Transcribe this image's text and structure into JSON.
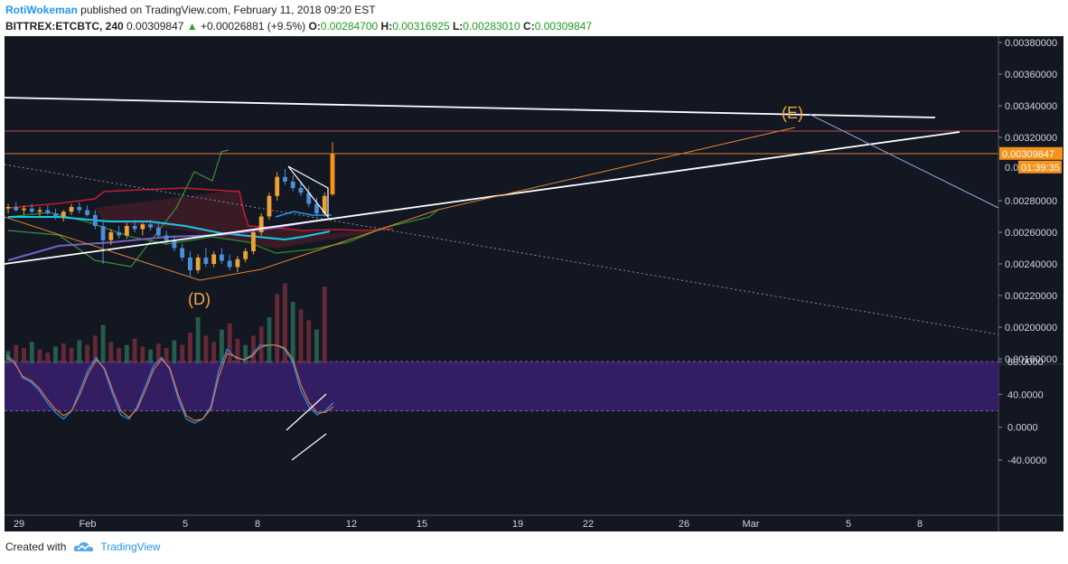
{
  "header": {
    "author": "RotiWokeman",
    "published_text": "published on TradingView.com, February 11, 2018 09:20 EST",
    "symbol": "BITTREX:ETCBTC, 240",
    "last": "0.00309847",
    "change_arrow": "▲",
    "change": "+0.00026881 (+9.5%)",
    "o_label": "O:",
    "o": "0.00284700",
    "h_label": "H:",
    "h": "0.00316925",
    "l_label": "L:",
    "l": "0.00283010",
    "c_label": "C:",
    "c": "0.00309847"
  },
  "footer": {
    "created_with": "Created with",
    "brand": "TradingView"
  },
  "chart_data": [
    {
      "type": "candlestick",
      "y_ticks": [
        "0.00380000",
        "0.00360000",
        "0.00340000",
        "0.00320000",
        "0.00280000",
        "0.00260000",
        "0.00240000",
        "0.00220000",
        "0.00200000",
        "0.00180000"
      ],
      "y_tick_values": [
        0.0038,
        0.0036,
        0.0034,
        0.0032,
        0.0028,
        0.0026,
        0.0024,
        0.0022,
        0.002,
        0.0018
      ],
      "ylim": [
        0.00175,
        0.00385
      ],
      "x_ticks": [
        "29",
        "Feb",
        "5",
        "8",
        "12",
        "15",
        "19",
        "22",
        "26",
        "Mar",
        "5",
        "8"
      ],
      "price_label": "0.00309847",
      "countdown_label": "01:39:35",
      "countdown_prefix": "0.0",
      "annotations": [
        "(D)",
        "(E)"
      ],
      "candles_approx": [
        [
          0.00275,
          0.00278,
          0.00272,
          0.00276
        ],
        [
          0.00276,
          0.00279,
          0.00273,
          0.00274
        ],
        [
          0.00274,
          0.00277,
          0.00271,
          0.00275
        ],
        [
          0.00275,
          0.00278,
          0.00272,
          0.00273
        ],
        [
          0.00273,
          0.00276,
          0.0027,
          0.00274
        ],
        [
          0.00274,
          0.00277,
          0.00271,
          0.00272
        ],
        [
          0.00272,
          0.00275,
          0.00268,
          0.0027
        ],
        [
          0.0027,
          0.00274,
          0.00267,
          0.00273
        ],
        [
          0.00273,
          0.00278,
          0.00271,
          0.00276
        ],
        [
          0.00276,
          0.00279,
          0.00272,
          0.00274
        ],
        [
          0.00274,
          0.00277,
          0.0027,
          0.00271
        ],
        [
          0.00271,
          0.00274,
          0.00262,
          0.00264
        ],
        [
          0.00264,
          0.00268,
          0.0024,
          0.00255
        ],
        [
          0.00255,
          0.00262,
          0.00252,
          0.0026
        ],
        [
          0.0026,
          0.00264,
          0.00256,
          0.00258
        ],
        [
          0.00258,
          0.00266,
          0.00256,
          0.00264
        ],
        [
          0.00264,
          0.00268,
          0.0026,
          0.00262
        ],
        [
          0.00262,
          0.00266,
          0.00258,
          0.00265
        ],
        [
          0.00265,
          0.00268,
          0.00261,
          0.00263
        ],
        [
          0.00263,
          0.00266,
          0.00256,
          0.00258
        ],
        [
          0.00258,
          0.00261,
          0.00252,
          0.00255
        ],
        [
          0.00255,
          0.00258,
          0.00248,
          0.0025
        ],
        [
          0.0025,
          0.00253,
          0.00242,
          0.00244
        ],
        [
          0.00244,
          0.00248,
          0.00232,
          0.00236
        ],
        [
          0.00236,
          0.00246,
          0.00234,
          0.00244
        ],
        [
          0.00244,
          0.0025,
          0.00238,
          0.0024
        ],
        [
          0.0024,
          0.00248,
          0.00238,
          0.00246
        ],
        [
          0.00246,
          0.0025,
          0.0024,
          0.00242
        ],
        [
          0.00242,
          0.00246,
          0.00236,
          0.00238
        ],
        [
          0.00238,
          0.00245,
          0.00235,
          0.00243
        ],
        [
          0.00243,
          0.0025,
          0.00241,
          0.00248
        ],
        [
          0.00248,
          0.00262,
          0.00246,
          0.0026
        ],
        [
          0.0026,
          0.00272,
          0.00258,
          0.0027
        ],
        [
          0.0027,
          0.00285,
          0.00268,
          0.00283
        ],
        [
          0.00283,
          0.00298,
          0.0028,
          0.00295
        ],
        [
          0.00295,
          0.003,
          0.0029,
          0.00292
        ],
        [
          0.00292,
          0.00296,
          0.00286,
          0.00288
        ],
        [
          0.00288,
          0.00292,
          0.00283,
          0.00285
        ],
        [
          0.00285,
          0.00289,
          0.00276,
          0.00278
        ],
        [
          0.00278,
          0.00282,
          0.0027,
          0.00272
        ],
        [
          0.00272,
          0.00285,
          0.0027,
          0.00283
        ],
        [
          0.00284,
          0.00317,
          0.00283,
          0.0031
        ]
      ]
    },
    {
      "type": "line",
      "name": "stochastic",
      "y_ticks": [
        "80.0000",
        "40.0000",
        "0.0000",
        "-40.0000"
      ],
      "y_tick_values": [
        80,
        40,
        0,
        -40
      ],
      "ylim": [
        -50,
        100
      ],
      "band": [
        20,
        80
      ],
      "series": [
        {
          "values": [
            88,
            80,
            60,
            55,
            45,
            30,
            18,
            10,
            20,
            45,
            70,
            85,
            70,
            40,
            15,
            10,
            25,
            50,
            75,
            85,
            70,
            35,
            10,
            5,
            10,
            25,
            70,
            95,
            85,
            82,
            88,
            100,
            100,
            100,
            95,
            80,
            45,
            25,
            15,
            20,
            30
          ]
        },
        {
          "values": [
            85,
            78,
            62,
            57,
            48,
            34,
            22,
            14,
            20,
            40,
            65,
            82,
            72,
            45,
            20,
            12,
            22,
            45,
            70,
            83,
            72,
            40,
            14,
            8,
            10,
            22,
            62,
            90,
            86,
            82,
            86,
            97,
            100,
            100,
            97,
            84,
            52,
            30,
            18,
            18,
            25
          ]
        }
      ]
    }
  ]
}
